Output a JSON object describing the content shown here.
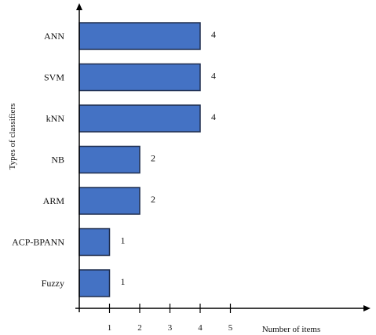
{
  "chart_data": {
    "type": "bar",
    "orientation": "horizontal",
    "title": "",
    "xlabel": "Number of items",
    "ylabel": "Types of classifiers",
    "categories": [
      "ANN",
      "SVM",
      "kNN",
      "NB",
      "ARM",
      "ACP-BPANN",
      "Fuzzy"
    ],
    "values": [
      4,
      4,
      4,
      2,
      2,
      1,
      1
    ],
    "value_labels": [
      "4",
      "4",
      "4",
      "2",
      "2",
      "1",
      "1"
    ],
    "xticks": [
      "1",
      "2",
      "3",
      "4",
      "5"
    ],
    "xlim": [
      0,
      5.9
    ],
    "grid": false,
    "legend": "none",
    "colors": {
      "bar_fill": "#4472c4",
      "bar_stroke": "#1f2d4d",
      "axis": "#000000"
    }
  }
}
